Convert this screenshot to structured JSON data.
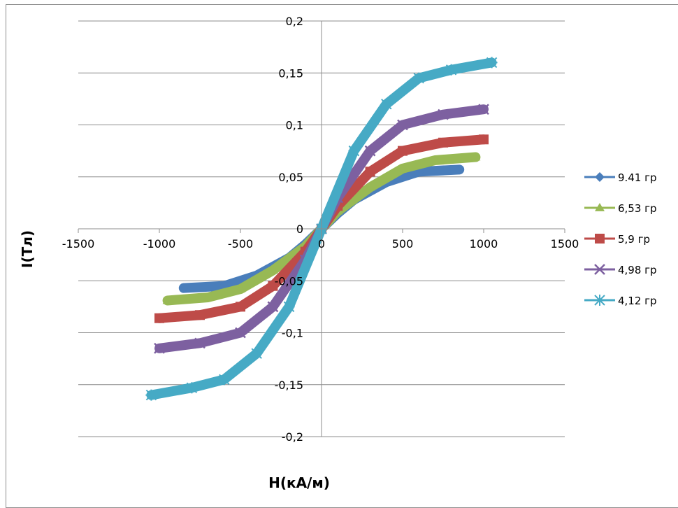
{
  "chart_data": {
    "type": "scatter",
    "title": "",
    "xlabel": "H(кА/м)",
    "ylabel": "I(Тл)",
    "xlim": [
      -1500,
      1500
    ],
    "ylim": [
      -0.2,
      0.2
    ],
    "x_ticks": [
      -1500,
      -1000,
      -500,
      0,
      500,
      1000,
      1500
    ],
    "x_tick_labels": [
      "-1500",
      "-1000",
      "-500",
      "0",
      "500",
      "1000",
      "1500"
    ],
    "y_ticks": [
      -0.2,
      -0.15,
      -0.1,
      -0.05,
      0,
      0.05,
      0.1,
      0.15,
      0.2
    ],
    "y_tick_labels": [
      "-0,2",
      "-0,15",
      "-0,1",
      "-0,05",
      "0",
      "0,05",
      "0,1",
      "0,15",
      "0,2"
    ],
    "grid": "horizontal",
    "legend_position": "right",
    "series": [
      {
        "name": "9.41 гр",
        "color": "#4a7ebb",
        "marker": "diamond",
        "x": [
          -850,
          -600,
          -400,
          -200,
          -100,
          0,
          100,
          200,
          400,
          600,
          850
        ],
        "y": [
          -0.057,
          -0.055,
          -0.045,
          -0.028,
          -0.015,
          0,
          0.015,
          0.028,
          0.045,
          0.055,
          0.057
        ]
      },
      {
        "name": "6,53 гр",
        "color": "#98b954",
        "marker": "triangle",
        "x": [
          -950,
          -700,
          -500,
          -300,
          -100,
          0,
          100,
          300,
          500,
          700,
          950
        ],
        "y": [
          -0.069,
          -0.066,
          -0.058,
          -0.04,
          -0.017,
          0,
          0.017,
          0.04,
          0.058,
          0.066,
          0.069
        ]
      },
      {
        "name": "5,9 гр",
        "color": "#be4b48",
        "marker": "square",
        "x": [
          -1000,
          -750,
          -500,
          -300,
          -100,
          0,
          100,
          300,
          500,
          750,
          1000
        ],
        "y": [
          -0.086,
          -0.083,
          -0.075,
          -0.055,
          -0.022,
          0,
          0.022,
          0.055,
          0.075,
          0.083,
          0.086
        ]
      },
      {
        "name": "4,98 гр",
        "color": "#7d60a0",
        "marker": "x",
        "x": [
          -1000,
          -750,
          -500,
          -300,
          -100,
          0,
          100,
          300,
          500,
          750,
          1000
        ],
        "y": [
          -0.115,
          -0.11,
          -0.1,
          -0.075,
          -0.03,
          0,
          0.03,
          0.075,
          0.1,
          0.11,
          0.115
        ]
      },
      {
        "name": "4,12 гр",
        "color": "#46aac5",
        "marker": "star",
        "x": [
          -1050,
          -800,
          -600,
          -400,
          -200,
          0,
          200,
          400,
          600,
          800,
          1050
        ],
        "y": [
          -0.16,
          -0.153,
          -0.145,
          -0.12,
          -0.075,
          0,
          0.075,
          0.12,
          0.145,
          0.153,
          0.16
        ]
      }
    ]
  }
}
